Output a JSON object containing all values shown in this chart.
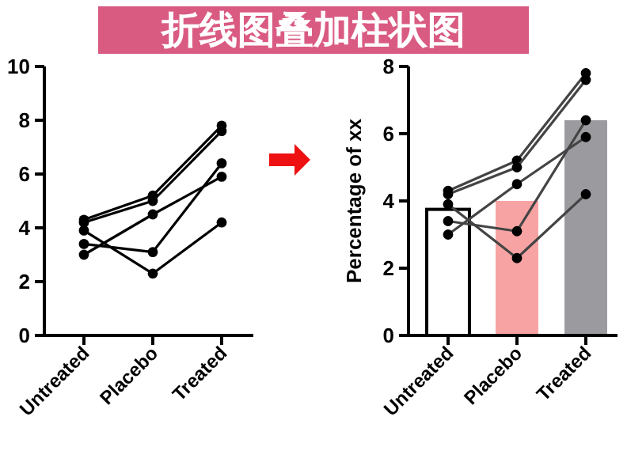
{
  "chart_data": [
    {
      "type": "line",
      "title": "折线图叠加柱状图",
      "categories": [
        "Untreated",
        "Placebo",
        "Treated"
      ],
      "ylim": [
        0,
        10
      ],
      "yticks": [
        0,
        2,
        4,
        6,
        8,
        10
      ],
      "marker": "circle",
      "grid": false,
      "series": [
        {
          "color": "#000000",
          "values": [
            4.3,
            5.2,
            7.8
          ]
        },
        {
          "color": "#000000",
          "values": [
            4.2,
            5.0,
            7.6
          ]
        },
        {
          "color": "#000000",
          "values": [
            3.0,
            4.5,
            5.9
          ]
        },
        {
          "color": "#000000",
          "values": [
            3.4,
            3.1,
            6.4
          ]
        },
        {
          "color": "#000000",
          "values": [
            3.9,
            2.3,
            4.2
          ]
        }
      ]
    },
    {
      "type": "bar",
      "ylabel": "Percentage of xx",
      "categories": [
        "Untreated",
        "Placebo",
        "Treated"
      ],
      "ylim": [
        0,
        8
      ],
      "yticks": [
        0,
        2,
        4,
        6,
        8
      ],
      "marker": "circle",
      "grid": false,
      "series": [
        {
          "values": [
            3.75,
            4.0,
            6.4
          ],
          "colors": [
            "#ffffff",
            "#f7a3a3",
            "#9b9a9f"
          ]
        },
        {
          "type": "line",
          "color": "#444444",
          "values": [
            4.3,
            5.2,
            7.8
          ]
        },
        {
          "type": "line",
          "color": "#444444",
          "values": [
            4.2,
            5.0,
            7.6
          ]
        },
        {
          "type": "line",
          "color": "#444444",
          "values": [
            3.0,
            4.5,
            5.9
          ]
        },
        {
          "type": "line",
          "color": "#444444",
          "values": [
            3.4,
            3.1,
            6.4
          ]
        },
        {
          "type": "line",
          "color": "#444444",
          "values": [
            3.9,
            2.3,
            4.2
          ]
        }
      ]
    }
  ]
}
